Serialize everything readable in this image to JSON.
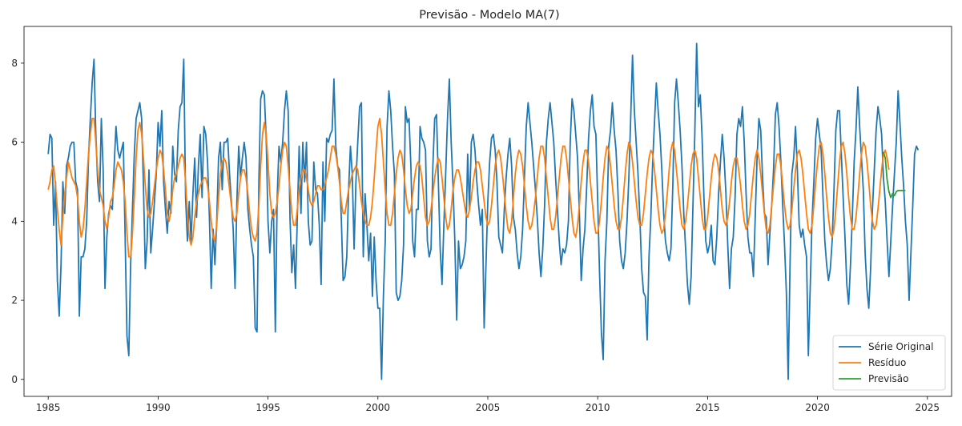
{
  "chart_data": {
    "type": "line",
    "title": "Previsão - Modelo MA(7)",
    "xlabel": "",
    "ylabel": "",
    "xlim": [
      1983.9,
      2026.1
    ],
    "ylim": [
      -0.43,
      8.93
    ],
    "x_ticks": [
      1985,
      1990,
      1995,
      2000,
      2005,
      2010,
      2015,
      2020,
      2025
    ],
    "y_ticks": [
      0,
      2,
      4,
      6,
      8
    ],
    "legend_position": "bottom-right",
    "grid": false,
    "series": [
      {
        "name": "Série Original",
        "color": "#1f77b4",
        "x_start": 1985.0,
        "step": 0.0833333,
        "values": [
          5.7,
          6.2,
          6.1,
          3.9,
          5.0,
          2.5,
          1.6,
          2.9,
          5.0,
          4.2,
          5.4,
          5.6,
          5.9,
          6.0,
          6.0,
          5.0,
          4.8,
          1.6,
          3.1,
          3.1,
          3.3,
          4.0,
          5.6,
          6.6,
          7.5,
          8.1,
          6.2,
          5.0,
          4.5,
          6.6,
          5.3,
          2.3,
          3.6,
          4.2,
          4.4,
          4.3,
          5.4,
          6.4,
          5.8,
          5.6,
          5.8,
          6.0,
          3.6,
          1.1,
          0.6,
          2.9,
          4.3,
          5.7,
          6.6,
          6.8,
          7.0,
          6.6,
          4.9,
          2.8,
          3.5,
          5.3,
          3.2,
          3.8,
          4.5,
          5.2,
          6.5,
          5.9,
          6.8,
          5.0,
          4.3,
          3.7,
          4.5,
          4.2,
          5.9,
          5.2,
          5.0,
          6.3,
          6.9,
          7.0,
          8.1,
          4.6,
          3.5,
          4.5,
          3.5,
          4.7,
          5.6,
          4.1,
          5.4,
          6.2,
          4.6,
          6.4,
          6.2,
          5.5,
          4.1,
          2.3,
          3.8,
          2.9,
          4.0,
          5.6,
          6.0,
          4.8,
          6.0,
          6.0,
          6.1,
          5.2,
          4.5,
          3.8,
          2.3,
          4.5,
          5.9,
          5.1,
          5.6,
          6.0,
          5.6,
          4.3,
          3.8,
          3.4,
          3.1,
          1.3,
          1.2,
          5.0,
          7.1,
          7.3,
          7.2,
          6.1,
          4.0,
          3.2,
          4.0,
          4.3,
          1.2,
          4.6,
          5.9,
          5.5,
          6.0,
          6.8,
          7.3,
          6.8,
          4.1,
          2.7,
          3.4,
          2.3,
          4.1,
          5.9,
          4.2,
          6.0,
          5.0,
          6.0,
          4.0,
          3.4,
          3.5,
          5.5,
          4.8,
          4.7,
          3.9,
          2.4,
          5.5,
          4.0,
          6.1,
          6.0,
          6.2,
          6.3,
          7.6,
          5.9,
          5.4,
          5.3,
          4.1,
          2.5,
          2.6,
          3.1,
          4.8,
          5.9,
          5.2,
          3.3,
          5.0,
          6.0,
          6.9,
          7.0,
          3.1,
          4.7,
          3.9,
          3.0,
          3.7,
          2.1,
          3.6,
          2.5,
          1.8,
          1.8,
          0.0,
          2.1,
          3.5,
          6.4,
          7.3,
          6.8,
          5.9,
          5.2,
          2.2,
          2.0,
          2.1,
          2.5,
          3.4,
          6.9,
          6.5,
          6.6,
          5.4,
          3.5,
          3.1,
          4.3,
          4.3,
          6.4,
          6.1,
          6.0,
          5.8,
          3.5,
          3.1,
          3.3,
          5.4,
          6.6,
          6.7,
          5.0,
          3.3,
          2.4,
          3.9,
          5.2,
          6.6,
          7.6,
          6.0,
          4.9,
          3.5,
          1.5,
          3.5,
          2.8,
          2.9,
          3.1,
          3.5,
          5.7,
          4.3,
          6.0,
          6.2,
          5.8,
          5.0,
          4.4,
          3.9,
          4.3,
          1.3,
          2.9,
          4.5,
          5.5,
          6.1,
          6.2,
          5.8,
          5.0,
          3.6,
          3.4,
          3.2,
          4.3,
          5.1,
          5.7,
          6.1,
          5.4,
          4.1,
          3.8,
          3.2,
          2.8,
          3.1,
          3.8,
          5.1,
          6.4,
          7.0,
          6.5,
          6.0,
          5.4,
          4.8,
          4.1,
          3.2,
          2.6,
          3.3,
          4.4,
          6.0,
          6.6,
          7.0,
          6.5,
          6.0,
          5.1,
          4.3,
          3.5,
          2.9,
          3.3,
          3.2,
          3.4,
          4.0,
          6.0,
          7.1,
          6.8,
          6.2,
          5.6,
          4.2,
          2.5,
          3.3,
          3.8,
          4.9,
          6.1,
          6.8,
          7.2,
          6.4,
          6.2,
          4.5,
          2.7,
          1.2,
          0.5,
          3.0,
          4.0,
          5.9,
          6.3,
          7.0,
          6.3,
          5.8,
          4.8,
          3.5,
          3.0,
          2.8,
          3.2,
          4.0,
          5.1,
          6.6,
          8.2,
          6.8,
          6.0,
          5.2,
          4.1,
          2.8,
          2.2,
          2.1,
          1.0,
          3.1,
          4.1,
          5.5,
          6.5,
          7.5,
          6.8,
          6.2,
          5.3,
          4.2,
          3.5,
          3.2,
          3.0,
          3.3,
          4.9,
          7.0,
          7.6,
          7.0,
          6.3,
          5.4,
          4.2,
          3.3,
          2.4,
          1.9,
          2.6,
          4.4,
          6.2,
          8.5,
          6.9,
          7.2,
          6.1,
          4.6,
          3.5,
          3.2,
          3.4,
          3.9,
          3.0,
          2.9,
          3.6,
          4.7,
          5.5,
          6.2,
          5.6,
          4.7,
          3.4,
          2.3,
          3.3,
          3.6,
          4.6,
          6.2,
          6.6,
          6.4,
          6.9,
          6.0,
          4.7,
          3.6,
          3.2,
          3.2,
          2.6,
          4.1,
          5.6,
          6.6,
          6.3,
          5.1,
          4.2,
          4.1,
          2.9,
          3.7,
          4.4,
          5.3,
          6.7,
          7.0,
          6.4,
          5.5,
          4.4,
          3.4,
          2.2,
          0.0,
          2.9,
          5.2,
          5.6,
          6.4,
          5.3,
          3.9,
          3.6,
          3.8,
          3.4,
          3.1,
          0.6,
          2.3,
          4.0,
          5.0,
          6.1,
          6.6,
          6.2,
          5.8,
          4.6,
          3.5,
          2.9,
          2.5,
          2.8,
          3.5,
          4.8,
          6.3,
          6.8,
          6.8,
          5.7,
          4.6,
          3.6,
          2.4,
          1.9,
          2.9,
          4.1,
          5.5,
          6.3,
          7.4,
          6.4,
          5.6,
          4.8,
          3.2,
          2.3,
          1.8,
          2.8,
          4.3,
          5.3,
          6.3,
          6.9,
          6.6,
          6.2,
          5.1,
          4.5,
          3.5,
          2.6,
          3.5,
          4.4,
          5.2,
          6.0,
          7.3,
          6.5,
          5.6,
          4.9,
          4.0,
          3.4,
          2.0,
          3.2,
          4.4,
          5.7,
          5.9,
          5.8
        ]
      },
      {
        "name": "Resíduo",
        "color": "#ff7f0e",
        "x_start": 1985.0,
        "step": 0.0833333,
        "values": [
          4.8,
          5.0,
          5.3,
          5.4,
          4.9,
          4.3,
          3.8,
          3.4,
          4.1,
          4.7,
          5.1,
          5.5,
          5.3,
          5.1,
          5.0,
          4.9,
          4.6,
          4.0,
          3.6,
          3.8,
          4.3,
          5.0,
          5.7,
          6.2,
          6.6,
          6.6,
          6.0,
          5.3,
          4.8,
          4.6,
          4.4,
          4.0,
          3.8,
          4.1,
          4.5,
          4.6,
          4.9,
          5.3,
          5.5,
          5.4,
          5.3,
          5.0,
          4.5,
          3.7,
          3.1,
          3.1,
          3.7,
          4.6,
          5.6,
          6.3,
          6.5,
          6.2,
          5.6,
          4.9,
          4.3,
          4.1,
          4.2,
          4.5,
          4.9,
          5.3,
          5.6,
          5.8,
          5.7,
          5.3,
          4.8,
          4.2,
          4.0,
          4.3,
          4.8,
          5.1,
          5.2,
          5.4,
          5.6,
          5.7,
          5.6,
          5.0,
          4.2,
          3.6,
          3.4,
          3.6,
          4.1,
          4.5,
          4.7,
          4.9,
          5.0,
          5.1,
          5.1,
          4.9,
          4.5,
          4.0,
          3.6,
          3.5,
          3.9,
          4.6,
          5.2,
          5.5,
          5.6,
          5.5,
          5.2,
          4.8,
          4.4,
          4.1,
          4.0,
          4.2,
          4.7,
          5.1,
          5.3,
          5.3,
          5.1,
          4.7,
          4.2,
          3.8,
          3.6,
          3.5,
          3.7,
          4.4,
          5.4,
          6.2,
          6.5,
          6.2,
          5.5,
          4.7,
          4.2,
          4.1,
          4.2,
          4.5,
          4.9,
          5.4,
          5.8,
          6.0,
          5.9,
          5.4,
          4.8,
          4.2,
          3.9,
          3.9,
          4.3,
          4.8,
          5.1,
          5.3,
          5.3,
          5.1,
          4.8,
          4.5,
          4.4,
          4.5,
          4.7,
          4.9,
          4.9,
          4.8,
          4.8,
          4.9,
          5.1,
          5.3,
          5.6,
          5.9,
          5.9,
          5.7,
          5.4,
          5.0,
          4.5,
          4.2,
          4.2,
          4.5,
          4.8,
          5.0,
          5.2,
          5.3,
          5.4,
          5.3,
          4.9,
          4.5,
          4.2,
          4.0,
          3.9,
          3.9,
          4.1,
          4.5,
          5.1,
          5.8,
          6.4,
          6.6,
          6.2,
          5.5,
          4.8,
          4.2,
          3.9,
          3.9,
          4.2,
          4.7,
          5.2,
          5.6,
          5.8,
          5.7,
          5.3,
          4.8,
          4.4,
          4.2,
          4.3,
          4.7,
          5.1,
          5.4,
          5.5,
          5.4,
          5.1,
          4.6,
          4.1,
          3.9,
          4.0,
          4.3,
          4.7,
          5.1,
          5.4,
          5.6,
          5.5,
          5.1,
          4.6,
          4.1,
          3.8,
          3.9,
          4.3,
          4.8,
          5.1,
          5.3,
          5.3,
          5.1,
          4.8,
          4.5,
          4.2,
          4.1,
          4.3,
          4.6,
          5.0,
          5.3,
          5.5,
          5.5,
          5.3,
          4.9,
          4.5,
          4.1,
          3.9,
          4.0,
          4.4,
          4.9,
          5.4,
          5.7,
          5.8,
          5.6,
          5.2,
          4.7,
          4.2,
          3.8,
          3.7,
          4.0,
          4.6,
          5.2,
          5.6,
          5.8,
          5.7,
          5.4,
          4.9,
          4.4,
          4.0,
          3.8,
          3.9,
          4.2,
          4.6,
          5.1,
          5.6,
          5.9,
          5.9,
          5.6,
          5.1,
          4.6,
          4.1,
          3.8,
          3.8,
          4.1,
          4.6,
          5.1,
          5.6,
          5.9,
          5.9,
          5.6,
          5.1,
          4.6,
          4.1,
          3.7,
          3.6,
          3.9,
          4.4,
          5.0,
          5.5,
          5.8,
          5.8,
          5.5,
          5.0,
          4.5,
          4.0,
          3.7,
          3.7,
          4.0,
          4.5,
          5.1,
          5.6,
          5.9,
          5.8,
          5.4,
          4.9,
          4.4,
          4.0,
          3.8,
          3.8,
          4.1,
          4.6,
          5.2,
          5.7,
          6.0,
          5.9,
          5.5,
          5.0,
          4.5,
          4.1,
          3.9,
          3.9,
          4.2,
          4.7,
          5.2,
          5.6,
          5.8,
          5.7,
          5.3,
          4.8,
          4.3,
          3.9,
          3.7,
          3.8,
          4.2,
          4.7,
          5.3,
          5.8,
          6.0,
          5.8,
          5.3,
          4.8,
          4.3,
          3.9,
          3.8,
          4.0,
          4.4,
          4.9,
          5.4,
          5.7,
          5.8,
          5.6,
          5.1,
          4.6,
          4.1,
          3.8,
          3.8,
          4.1,
          4.6,
          5.1,
          5.5,
          5.7,
          5.6,
          5.3,
          4.8,
          4.3,
          4.0,
          3.9,
          4.1,
          4.5,
          5.0,
          5.4,
          5.6,
          5.6,
          5.3,
          4.9,
          4.4,
          4.0,
          3.8,
          3.9,
          4.2,
          4.7,
          5.2,
          5.6,
          5.8,
          5.6,
          5.2,
          4.7,
          4.2,
          3.8,
          3.7,
          3.9,
          4.4,
          4.9,
          5.4,
          5.7,
          5.7,
          5.4,
          4.9,
          4.4,
          4.0,
          3.8,
          3.9,
          4.3,
          4.8,
          5.3,
          5.7,
          5.8,
          5.6,
          5.2,
          4.7,
          4.2,
          3.8,
          3.7,
          3.9,
          4.4,
          5.0,
          5.5,
          5.9,
          6.0,
          5.7,
          5.2,
          4.6,
          4.1,
          3.7,
          3.6,
          3.8,
          4.3,
          4.9,
          5.5,
          5.9,
          6.0,
          5.7,
          5.2,
          4.6,
          4.1,
          3.8,
          3.8,
          4.1,
          4.6,
          5.2,
          5.7,
          6.0,
          5.9,
          5.5,
          5.0,
          4.4,
          4.0,
          3.8,
          3.9,
          4.3,
          4.8,
          5.3,
          5.7,
          5.8,
          5.6,
          5.3
        ]
      },
      {
        "name": "Previsão",
        "color": "#2ca02c",
        "x_start": 2023.0,
        "step": 0.0833333,
        "values": [
          5.75,
          5.6,
          5.05,
          4.75,
          4.6,
          4.7,
          4.65,
          4.75,
          4.78,
          4.78,
          4.78,
          4.78,
          4.78
        ]
      }
    ]
  }
}
